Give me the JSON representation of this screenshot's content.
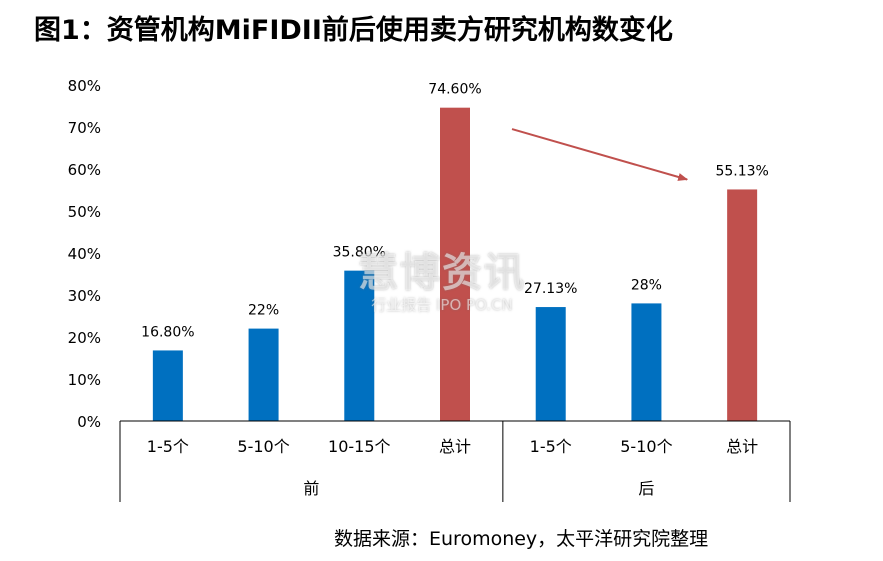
{
  "title": "图1：资管机构MiFIDII前后使用卖方研究机构数变化",
  "source": "数据来源：Euromoney，太平洋研究院整理",
  "watermark": {
    "main": "慧博资讯",
    "sub": "行业报告 IPO PO.CN"
  },
  "chart_data": {
    "type": "bar",
    "title": "图1：资管机构MiFIDII前后使用卖方研究机构数变化",
    "ylim": [
      0,
      80
    ],
    "yticks": [
      "0%",
      "10%",
      "20%",
      "30%",
      "40%",
      "50%",
      "60%",
      "70%",
      "80%"
    ],
    "grid": false,
    "legend": "none",
    "groups": [
      {
        "name": "前",
        "categories": [
          "1-5个",
          "5-10个",
          "10-15个",
          "总计"
        ]
      },
      {
        "name": "后",
        "categories": [
          "1-5个",
          "5-10个",
          "总计"
        ]
      }
    ],
    "bars": [
      {
        "group": "前",
        "category": "1-5个",
        "value": 16.8,
        "label": "16.80%",
        "color": "#0070C0"
      },
      {
        "group": "前",
        "category": "5-10个",
        "value": 22,
        "label": "22%",
        "color": "#0070C0"
      },
      {
        "group": "前",
        "category": "10-15个",
        "value": 35.8,
        "label": "35.80%",
        "color": "#0070C0"
      },
      {
        "group": "前",
        "category": "总计",
        "value": 74.6,
        "label": "74.60%",
        "color": "#C0504D"
      },
      {
        "group": "后",
        "category": "1-5个",
        "value": 27.13,
        "label": "27.13%",
        "color": "#0070C0"
      },
      {
        "group": "后",
        "category": "5-10个",
        "value": 28,
        "label": "28%",
        "color": "#0070C0"
      },
      {
        "group": "后",
        "category": "总计",
        "value": 55.13,
        "label": "55.13%",
        "color": "#C0504D"
      }
    ],
    "annotation": {
      "type": "arrow",
      "from": "前-总计",
      "to": "后-总计",
      "color": "#C0504D"
    }
  }
}
